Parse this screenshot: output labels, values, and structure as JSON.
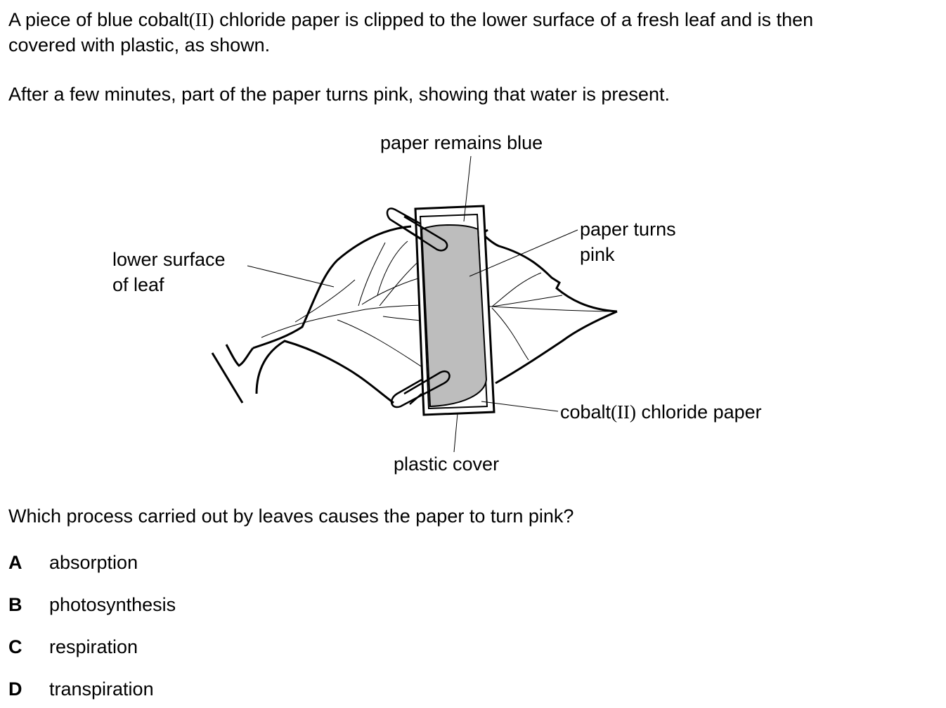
{
  "intro": {
    "line1_before": "A piece of blue cobalt",
    "line1_roman": "(II)",
    "line1_after": " chloride paper is clipped to the lower surface of a fresh leaf and is then",
    "line2": "covered with plastic, as shown."
  },
  "observation": "After a few minutes, part of the paper turns pink, showing that water is present.",
  "diagram": {
    "label_top": "paper remains blue",
    "label_pink_1": "paper turns",
    "label_pink_2": "pink",
    "label_leaf_1": "lower surface",
    "label_leaf_2": "of leaf",
    "label_cobalt_before": "cobalt",
    "label_cobalt_roman": "(II)",
    "label_cobalt_after": " chloride paper",
    "label_cover": "plastic cover",
    "colors": {
      "pink_region_fill": "#bdbdbd",
      "outline": "#000000"
    }
  },
  "question": "Which process carried out by leaves causes the paper to turn pink?",
  "options": [
    {
      "letter": "A",
      "text": "absorption"
    },
    {
      "letter": "B",
      "text": "photosynthesis"
    },
    {
      "letter": "C",
      "text": "respiration"
    },
    {
      "letter": "D",
      "text": "transpiration"
    }
  ]
}
